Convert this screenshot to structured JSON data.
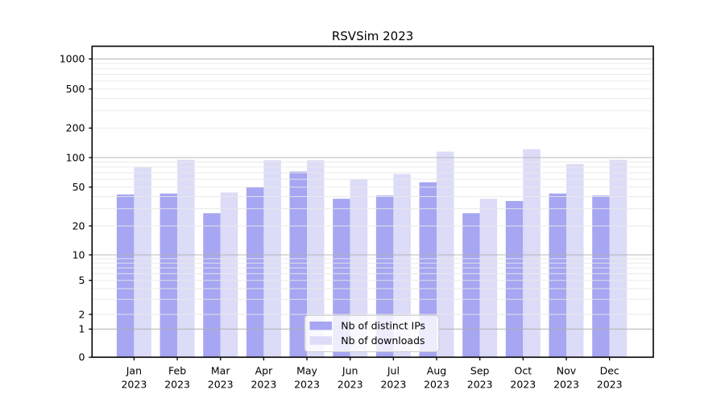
{
  "title": "RSVSim 2023",
  "chart_data": {
    "type": "bar",
    "title": "RSVSim 2023",
    "categories": [
      "Jan",
      "Feb",
      "Mar",
      "Apr",
      "May",
      "Jun",
      "Jul",
      "Aug",
      "Sep",
      "Oct",
      "Nov",
      "Dec"
    ],
    "category_year_line": "2023",
    "series": [
      {
        "name": "Nb of distinct IPs",
        "color": "#a6a6f2",
        "values": [
          42,
          43,
          27,
          50,
          72,
          38,
          41,
          56,
          27,
          36,
          43,
          41
        ]
      },
      {
        "name": "Nb of downloads",
        "color": "#dcdcf8",
        "values": [
          80,
          95,
          44,
          94,
          94,
          60,
          68,
          115,
          38,
          122,
          86,
          95
        ]
      }
    ],
    "yscale": "symlog",
    "yticks": [
      0,
      1,
      2,
      5,
      10,
      20,
      50,
      100,
      200,
      500,
      1000
    ],
    "ylim": [
      0,
      1400
    ],
    "grid": "horizontal major and minor gridlines",
    "legend_position": "lower center"
  },
  "colors": {
    "grid_major": "#b0b0b0",
    "grid_minor": "#e8e8e8",
    "axis": "#000000",
    "background": "#ffffff",
    "legend_border": "#cccccc",
    "legend_background": "#ffffff"
  }
}
